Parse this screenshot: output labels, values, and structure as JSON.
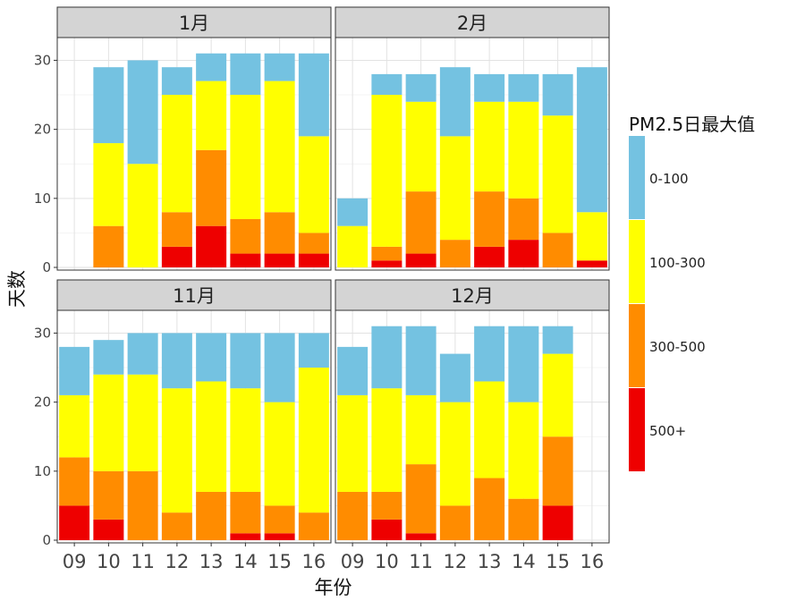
{
  "chart_data": {
    "type": "bar",
    "stacked": true,
    "facet_layout": "2x2",
    "xlabel": "年份",
    "ylabel": "天数",
    "categories": [
      "09",
      "10",
      "11",
      "12",
      "13",
      "14",
      "15",
      "16"
    ],
    "ylim": [
      0,
      32
    ],
    "yticks": [
      0,
      10,
      20,
      30
    ],
    "grid": true,
    "legend": {
      "title": "PM2.5日最大值",
      "position": "right",
      "entries": [
        {
          "label": "0-100",
          "color": "#74c2e1"
        },
        {
          "label": "100-300",
          "color": "#ffff00"
        },
        {
          "label": "300-500",
          "color": "#ff8c00"
        },
        {
          "label": "500+",
          "color": "#ee0000"
        }
      ]
    },
    "stack_order": [
      "500+",
      "300-500",
      "100-300",
      "0-100"
    ],
    "panels": [
      {
        "title": "1月",
        "series": [
          {
            "name": "500+",
            "values": [
              null,
              0,
              0,
              3,
              6,
              2,
              2,
              2
            ]
          },
          {
            "name": "300-500",
            "values": [
              null,
              6,
              0,
              5,
              11,
              5,
              6,
              3
            ]
          },
          {
            "name": "100-300",
            "values": [
              null,
              12,
              15,
              17,
              10,
              18,
              19,
              14
            ]
          },
          {
            "name": "0-100",
            "values": [
              null,
              11,
              15,
              4,
              4,
              6,
              4,
              12
            ]
          }
        ]
      },
      {
        "title": "2月",
        "series": [
          {
            "name": "500+",
            "values": [
              0,
              1,
              2,
              0,
              3,
              4,
              0,
              1
            ]
          },
          {
            "name": "300-500",
            "values": [
              0,
              2,
              9,
              4,
              8,
              6,
              5,
              0
            ]
          },
          {
            "name": "100-300",
            "values": [
              6,
              22,
              13,
              15,
              13,
              14,
              17,
              7
            ]
          },
          {
            "name": "0-100",
            "values": [
              4,
              3,
              4,
              10,
              4,
              4,
              6,
              21
            ]
          }
        ]
      },
      {
        "title": "11月",
        "series": [
          {
            "name": "500+",
            "values": [
              5,
              3,
              0,
              0,
              0,
              1,
              1,
              0
            ]
          },
          {
            "name": "300-500",
            "values": [
              7,
              7,
              10,
              4,
              7,
              6,
              4,
              4
            ]
          },
          {
            "name": "100-300",
            "values": [
              9,
              14,
              14,
              18,
              16,
              15,
              15,
              21
            ]
          },
          {
            "name": "0-100",
            "values": [
              7,
              5,
              6,
              8,
              7,
              8,
              10,
              5
            ]
          }
        ]
      },
      {
        "title": "12月",
        "series": [
          {
            "name": "500+",
            "values": [
              0,
              3,
              1,
              0,
              0,
              0,
              5,
              null
            ]
          },
          {
            "name": "300-500",
            "values": [
              7,
              4,
              10,
              5,
              9,
              6,
              10,
              null
            ]
          },
          {
            "name": "100-300",
            "values": [
              14,
              15,
              10,
              15,
              14,
              14,
              12,
              null
            ]
          },
          {
            "name": "0-100",
            "values": [
              7,
              9,
              10,
              7,
              8,
              11,
              4,
              null
            ]
          }
        ]
      }
    ]
  }
}
